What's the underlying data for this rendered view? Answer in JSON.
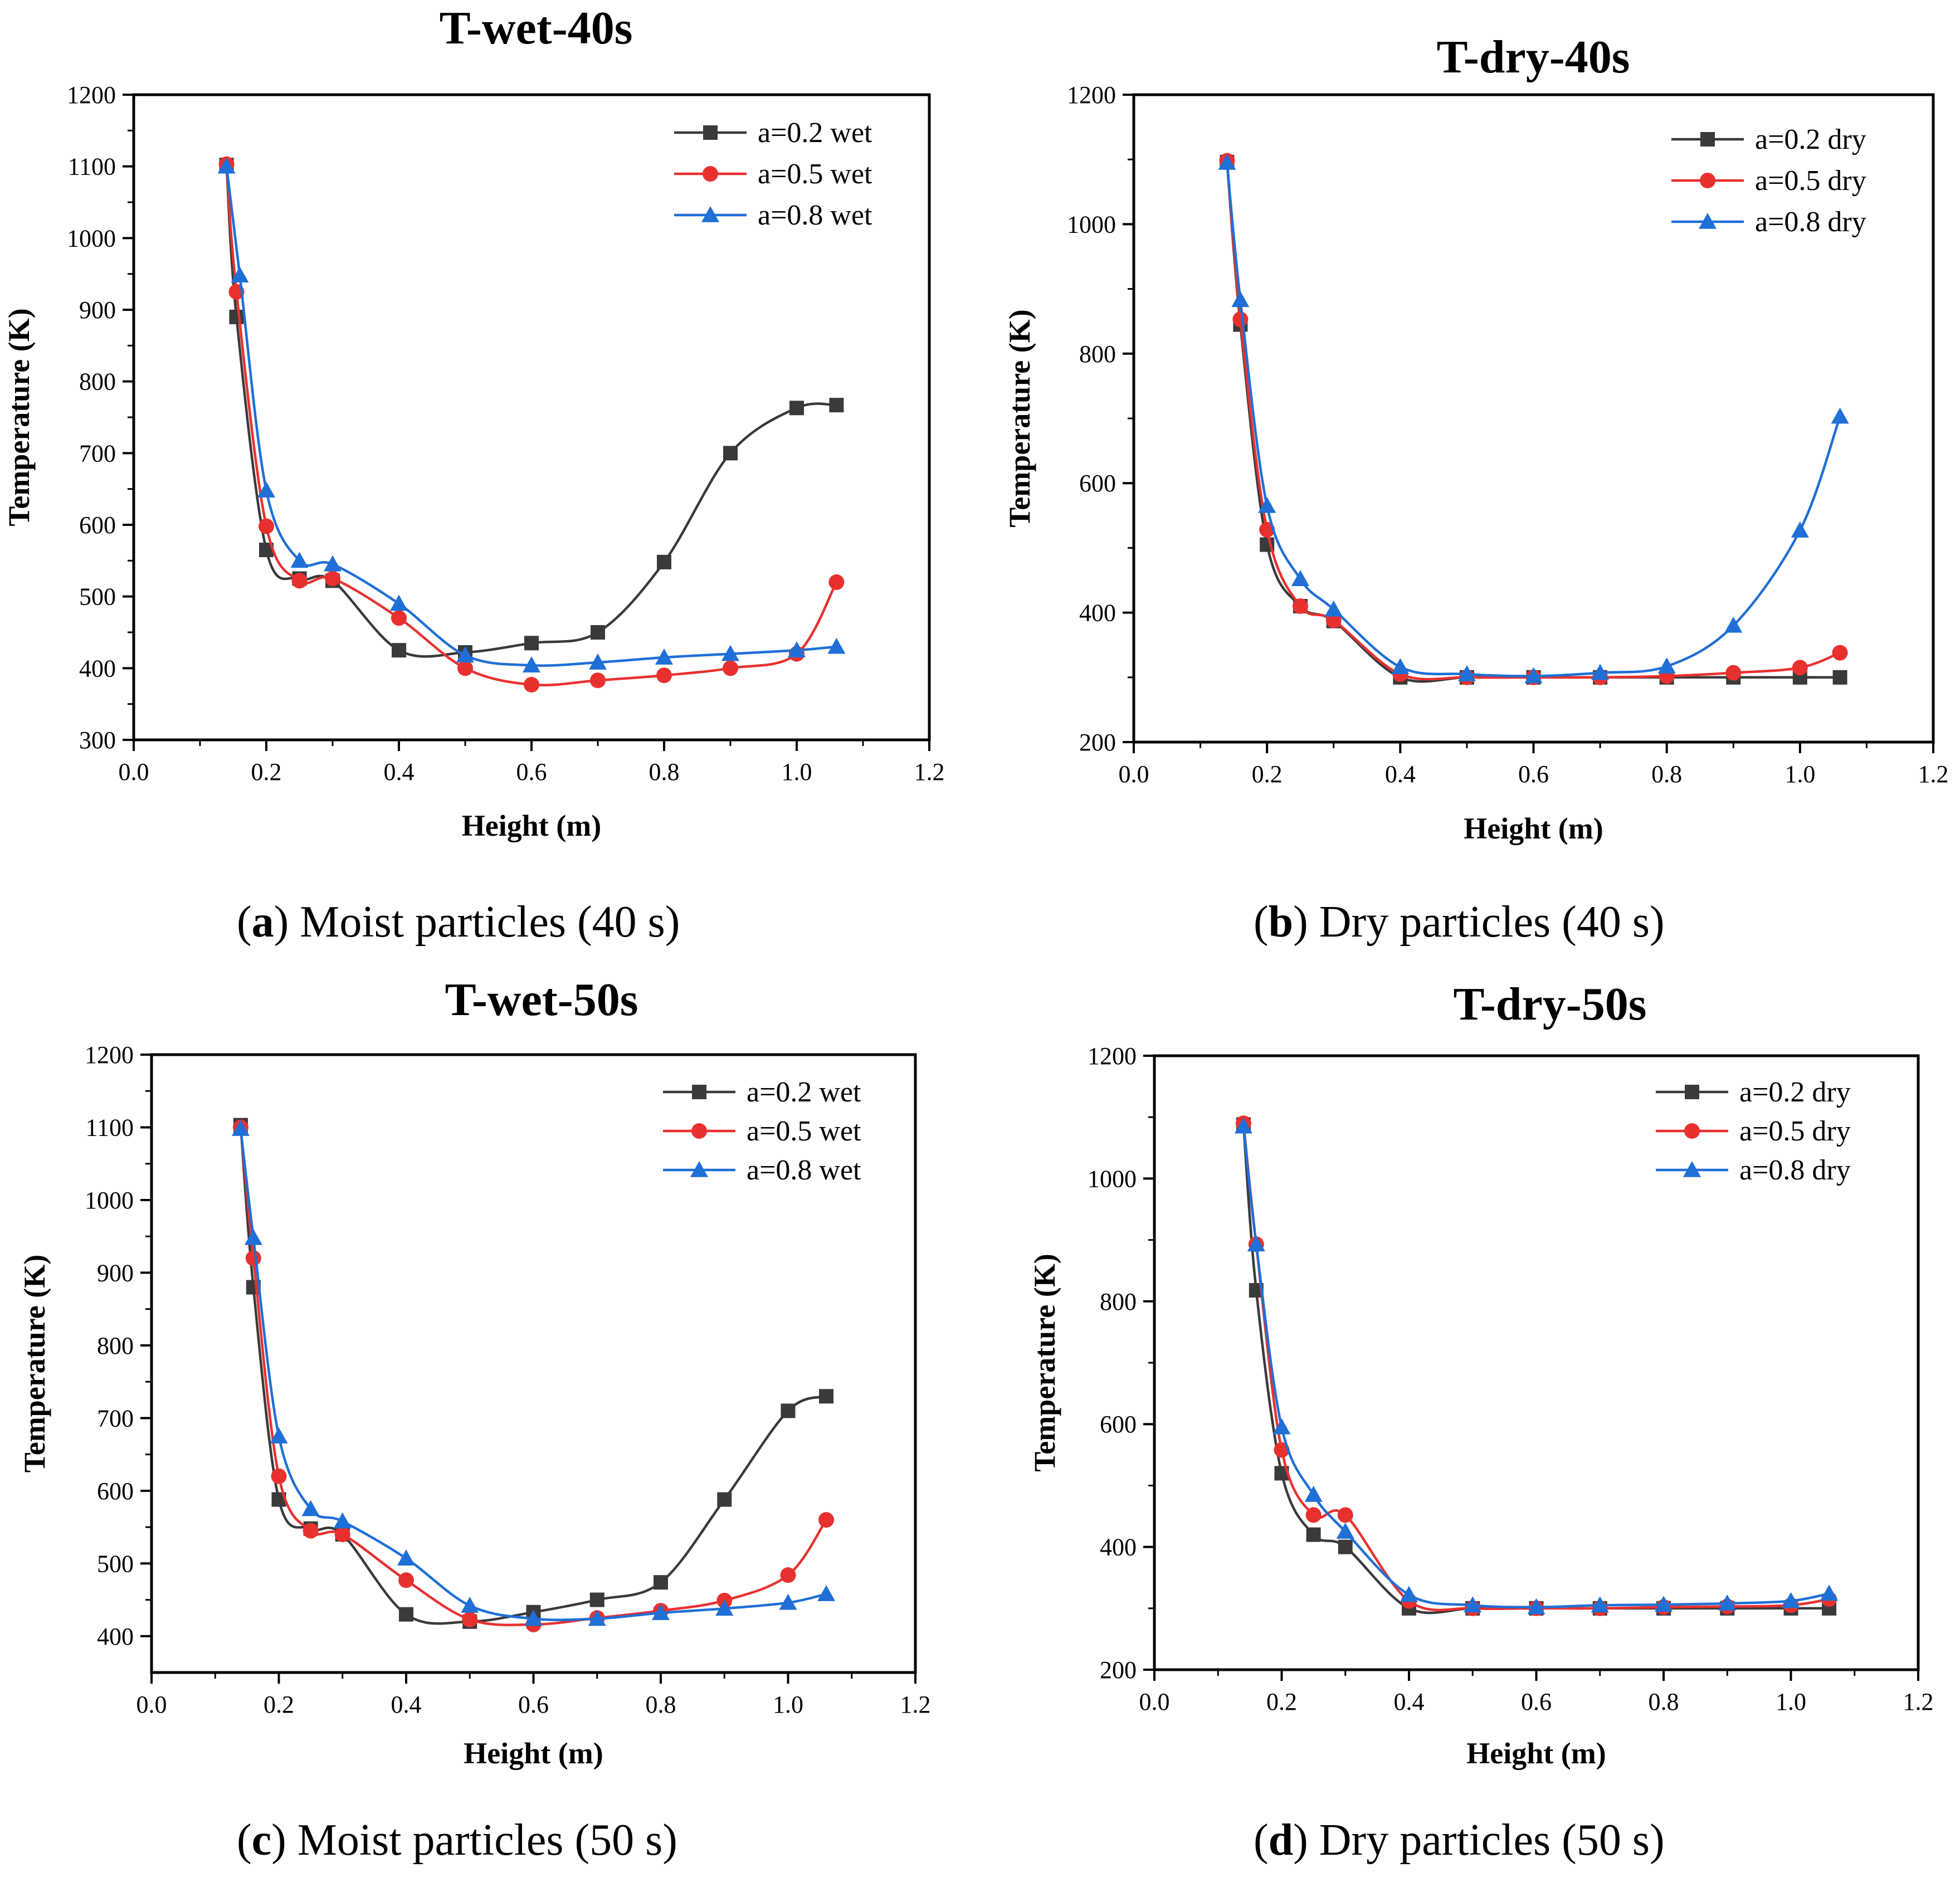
{
  "chart_data": [
    {
      "type": "line",
      "title": "T-wet-40s",
      "xlabel": "Height (m)",
      "ylabel": "Temperature (K)",
      "xlim": [
        0.0,
        1.2
      ],
      "ylim": [
        300,
        1200
      ],
      "xticks": [
        "0.0",
        "0.2",
        "0.4",
        "0.6",
        "0.8",
        "1.0",
        "1.2"
      ],
      "yticks": [
        "300",
        "400",
        "500",
        "600",
        "700",
        "800",
        "900",
        "1000",
        "1100",
        "1200"
      ],
      "grid": false,
      "legend_position": "top-right",
      "series": [
        {
          "name": "a=0.2 wet",
          "color": "#3a3a3a",
          "marker": "square",
          "x": [
            0.14,
            0.155,
            0.2,
            0.25,
            0.3,
            0.4,
            0.5,
            0.6,
            0.7,
            0.8,
            0.9,
            1.0,
            1.06
          ],
          "y": [
            1102,
            890,
            565,
            525,
            522,
            425,
            422,
            435,
            450,
            548,
            700,
            763,
            767
          ]
        },
        {
          "name": "a=0.5 wet",
          "color": "#e8312f",
          "marker": "circle",
          "x": [
            0.14,
            0.155,
            0.2,
            0.25,
            0.3,
            0.4,
            0.5,
            0.6,
            0.7,
            0.8,
            0.9,
            1.0,
            1.06
          ],
          "y": [
            1103,
            925,
            598,
            522,
            525,
            470,
            400,
            377,
            383,
            390,
            400,
            420,
            520
          ]
        },
        {
          "name": "a=0.8 wet",
          "color": "#1f6fd6",
          "marker": "triangle",
          "x": [
            0.14,
            0.16,
            0.2,
            0.25,
            0.3,
            0.4,
            0.5,
            0.6,
            0.7,
            0.8,
            0.9,
            1.0,
            1.06
          ],
          "y": [
            1100,
            948,
            648,
            550,
            545,
            490,
            418,
            404,
            408,
            415,
            420,
            425,
            430
          ]
        }
      ]
    },
    {
      "type": "line",
      "title": "T-dry-40s",
      "xlabel": "Height (m)",
      "ylabel": "Temperature (K)",
      "xlim": [
        0.0,
        1.2
      ],
      "ylim": [
        200,
        1200
      ],
      "xticks": [
        "0.0",
        "0.2",
        "0.4",
        "0.6",
        "0.8",
        "1.0",
        "1.2"
      ],
      "yticks": [
        "200",
        "400",
        "600",
        "800",
        "1000",
        "1200"
      ],
      "grid": false,
      "legend_position": "top-right",
      "series": [
        {
          "name": "a=0.2 dry",
          "color": "#3a3a3a",
          "marker": "square",
          "x": [
            0.14,
            0.16,
            0.2,
            0.25,
            0.3,
            0.4,
            0.5,
            0.6,
            0.7,
            0.8,
            0.9,
            1.0,
            1.06
          ],
          "y": [
            1096,
            845,
            505,
            410,
            387,
            300,
            300,
            300,
            300,
            300,
            300,
            300,
            300
          ]
        },
        {
          "name": "a=0.5 dry",
          "color": "#e8312f",
          "marker": "circle",
          "x": [
            0.14,
            0.16,
            0.2,
            0.25,
            0.3,
            0.4,
            0.5,
            0.6,
            0.7,
            0.8,
            0.9,
            1.0,
            1.06
          ],
          "y": [
            1098,
            853,
            528,
            410,
            388,
            305,
            300,
            300,
            300,
            302,
            307,
            315,
            338
          ]
        },
        {
          "name": "a=0.8 dry",
          "color": "#1f6fd6",
          "marker": "triangle",
          "x": [
            0.14,
            0.16,
            0.2,
            0.25,
            0.3,
            0.4,
            0.5,
            0.6,
            0.7,
            0.8,
            0.9,
            1.0,
            1.06
          ],
          "y": [
            1095,
            883,
            565,
            452,
            405,
            316,
            305,
            302,
            307,
            317,
            380,
            527,
            703
          ]
        }
      ]
    },
    {
      "type": "line",
      "title": "T-wet-50s",
      "xlabel": "Height (m)",
      "ylabel": "Temperature (K)",
      "xlim": [
        0.0,
        1.2
      ],
      "ylim": [
        350,
        1200
      ],
      "xticks": [
        "0.0",
        "0.2",
        "0.4",
        "0.6",
        "0.8",
        "1.0",
        "1.2"
      ],
      "yticks": [
        "400",
        "500",
        "600",
        "700",
        "800",
        "900",
        "1000",
        "1100",
        "1200"
      ],
      "grid": false,
      "legend_position": "top-right",
      "series": [
        {
          "name": "a=0.2 wet",
          "color": "#3a3a3a",
          "marker": "square",
          "x": [
            0.14,
            0.16,
            0.2,
            0.25,
            0.3,
            0.4,
            0.5,
            0.6,
            0.7,
            0.8,
            0.9,
            1.0,
            1.06
          ],
          "y": [
            1103,
            880,
            588,
            548,
            540,
            430,
            420,
            433,
            450,
            474,
            588,
            710,
            730
          ]
        },
        {
          "name": "a=0.5 wet",
          "color": "#e8312f",
          "marker": "circle",
          "x": [
            0.14,
            0.16,
            0.2,
            0.25,
            0.3,
            0.4,
            0.5,
            0.6,
            0.7,
            0.8,
            0.9,
            1.0,
            1.06
          ],
          "y": [
            1100,
            920,
            620,
            545,
            540,
            477,
            423,
            416,
            425,
            435,
            449,
            484,
            560
          ]
        },
        {
          "name": "a=0.8 wet",
          "color": "#1f6fd6",
          "marker": "triangle",
          "x": [
            0.14,
            0.16,
            0.2,
            0.25,
            0.3,
            0.4,
            0.5,
            0.6,
            0.7,
            0.8,
            0.9,
            1.0,
            1.06
          ],
          "y": [
            1098,
            948,
            675,
            575,
            558,
            507,
            442,
            424,
            424,
            432,
            438,
            446,
            458
          ]
        }
      ]
    },
    {
      "type": "line",
      "title": "T-dry-50s",
      "xlabel": "Height (m)",
      "ylabel": "Temperature (K)",
      "xlim": [
        0.0,
        1.2
      ],
      "ylim": [
        200,
        1200
      ],
      "xticks": [
        "0.0",
        "0.2",
        "0.4",
        "0.6",
        "0.8",
        "1.0",
        "1.2"
      ],
      "yticks": [
        "200",
        "400",
        "600",
        "800",
        "1000",
        "1200"
      ],
      "grid": false,
      "legend_position": "top-right",
      "series": [
        {
          "name": "a=0.2 dry",
          "color": "#3a3a3a",
          "marker": "square",
          "x": [
            0.14,
            0.16,
            0.2,
            0.25,
            0.3,
            0.4,
            0.5,
            0.6,
            0.7,
            0.8,
            0.9,
            1.0,
            1.06
          ],
          "y": [
            1088,
            818,
            520,
            420,
            400,
            300,
            300,
            300,
            300,
            300,
            300,
            300,
            300
          ]
        },
        {
          "name": "a=0.5 dry",
          "color": "#e8312f",
          "marker": "circle",
          "x": [
            0.14,
            0.16,
            0.2,
            0.25,
            0.3,
            0.4,
            0.5,
            0.6,
            0.7,
            0.8,
            0.9,
            1.0,
            1.06
          ],
          "y": [
            1090,
            893,
            558,
            452,
            452,
            312,
            300,
            300,
            300,
            302,
            303,
            305,
            315
          ]
        },
        {
          "name": "a=0.8 dry",
          "color": "#1f6fd6",
          "marker": "triangle",
          "x": [
            0.14,
            0.16,
            0.2,
            0.25,
            0.3,
            0.4,
            0.5,
            0.6,
            0.7,
            0.8,
            0.9,
            1.0,
            1.06
          ],
          "y": [
            1085,
            893,
            595,
            485,
            425,
            322,
            305,
            302,
            305,
            306,
            308,
            312,
            324
          ]
        }
      ]
    }
  ],
  "captions": [
    {
      "letter": "a",
      "text": " Moist particles (40 s)",
      "open": "(",
      "close": ")"
    },
    {
      "letter": "b",
      "text": " Dry particles (40 s)",
      "open": "(",
      "close": ")"
    },
    {
      "letter": "c",
      "text": " Moist particles (50 s)",
      "open": "(",
      "close": ")"
    },
    {
      "letter": "d",
      "text": " Dry particles (50 s)",
      "open": "(",
      "close": ")"
    }
  ]
}
